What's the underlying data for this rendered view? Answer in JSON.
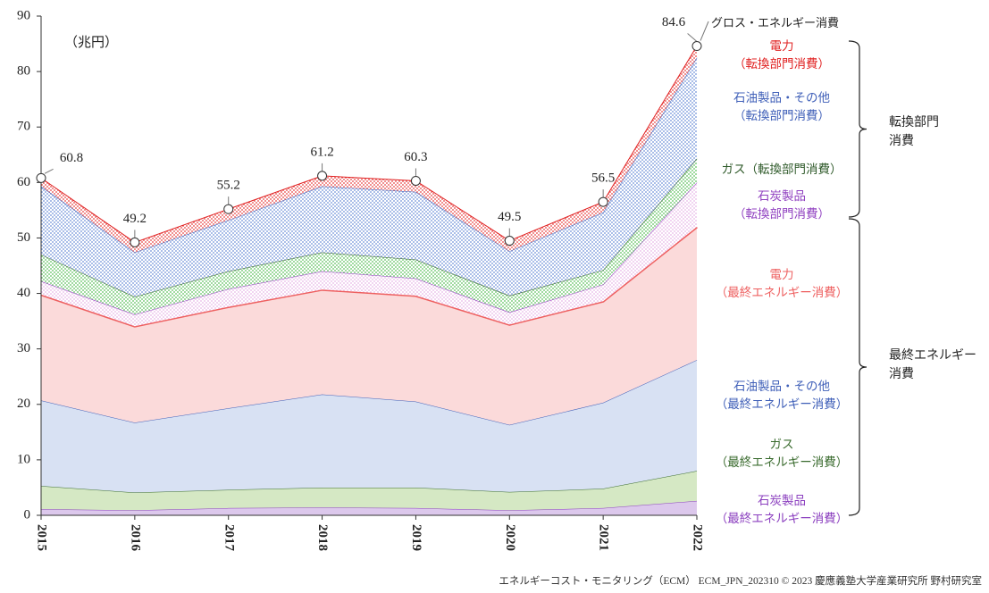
{
  "chart_data": {
    "type": "stacked-area",
    "unit": "（兆円）",
    "source": "エネルギーコスト・モニタリング（ECM） ECM_JPN_202310 © 2023 慶應義塾大学産業研究所 野村研究室",
    "categories": [
      "2015",
      "2016",
      "2017",
      "2018",
      "2019",
      "2020",
      "2021",
      "2022"
    ],
    "ylim": [
      0,
      90
    ],
    "yticks": [
      0,
      10,
      20,
      30,
      40,
      50,
      60,
      70,
      80,
      90
    ],
    "series": [
      {
        "name": "石炭製品\n（最終エネルギー消費）",
        "color": "#8b3fbf",
        "fill": "#dcc8ec",
        "pattern": "solid",
        "values": [
          1.1,
          0.9,
          1.3,
          1.4,
          1.3,
          0.9,
          1.3,
          2.6
        ]
      },
      {
        "name": "ガス\n（最終エネルギー消費）",
        "color": "#3a6b2e",
        "fill": "#d5e8c4",
        "pattern": "solid",
        "values": [
          4.2,
          3.2,
          3.3,
          3.6,
          3.7,
          3.3,
          3.5,
          5.4
        ]
      },
      {
        "name": "石油製品・その他\n（最終エネルギー消費）",
        "color": "#3f5fb8",
        "fill": "#d8e1f3",
        "pattern": "solid",
        "values": [
          15.4,
          12.6,
          14.7,
          16.8,
          15.5,
          12.1,
          15.5,
          20.0
        ]
      },
      {
        "name": "電力\n（最終エネルギー消費）",
        "color": "#ee6060",
        "fill": "#fbdada",
        "pattern": "solid",
        "values": [
          19.1,
          17.4,
          18.3,
          18.9,
          19.1,
          18.1,
          18.3,
          24.0
        ]
      },
      {
        "name": "石炭製品\n（転換部門消費）",
        "color": "#9040c0",
        "fill": "#e8b8e8",
        "pattern": "dots",
        "values": [
          2.4,
          2.1,
          3.2,
          3.3,
          3.1,
          2.2,
          3.0,
          8.0
        ]
      },
      {
        "name": "ガス（転換部門消費）",
        "color": "#2f5a2a",
        "fill": "#5cbf5c",
        "pattern": "dots",
        "values": [
          4.8,
          3.2,
          3.2,
          3.4,
          3.4,
          3.0,
          2.6,
          4.3
        ]
      },
      {
        "name": "石油製品・その他\n（転換部門消費）",
        "color": "#3f5fb8",
        "fill": "#6d8fd8",
        "pattern": "dots",
        "values": [
          12.3,
          8.0,
          9.2,
          11.9,
          12.2,
          8.0,
          10.4,
          18.2
        ]
      },
      {
        "name": "電力\n（転換部門消費）",
        "color": "#e02020",
        "fill": "#e84040",
        "pattern": "dots",
        "values": [
          1.5,
          1.8,
          2.0,
          1.9,
          2.0,
          1.9,
          1.9,
          2.1
        ]
      }
    ],
    "total": {
      "name": "グロス・エネルギー消費",
      "values": [
        60.8,
        49.2,
        55.2,
        61.2,
        60.3,
        49.5,
        56.5,
        84.6
      ]
    },
    "groups": [
      {
        "label": "転換部門\n消費"
      },
      {
        "label": "最終エネルギー\n消費"
      }
    ]
  }
}
